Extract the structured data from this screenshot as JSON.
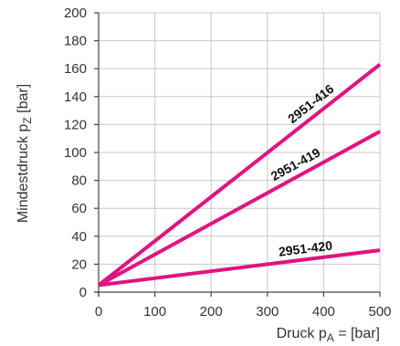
{
  "chart_data": {
    "type": "line",
    "title": "",
    "xlabel": "Druck pA = [bar]",
    "xlabel_parts": {
      "main": "Druck p",
      "sub": "A",
      "rest": " = [bar]"
    },
    "ylabel": "Mindestdruck pZ [bar]",
    "ylabel_parts": {
      "main": "Mindestdruck p",
      "sub": "Z",
      "rest": " [bar]"
    },
    "xlim": [
      0,
      500
    ],
    "ylim": [
      0,
      200
    ],
    "x_ticks": [
      0,
      100,
      200,
      300,
      400,
      500
    ],
    "y_ticks": [
      0,
      20,
      40,
      60,
      80,
      100,
      120,
      140,
      160,
      180,
      200
    ],
    "grid": true,
    "line_color": "#e0137f",
    "series": [
      {
        "name": "2951-416",
        "x": [
          0,
          500
        ],
        "y": [
          5,
          163
        ]
      },
      {
        "name": "2951-419",
        "x": [
          0,
          500
        ],
        "y": [
          5,
          115
        ]
      },
      {
        "name": "2951-420",
        "x": [
          0,
          500
        ],
        "y": [
          5,
          30
        ]
      }
    ]
  }
}
